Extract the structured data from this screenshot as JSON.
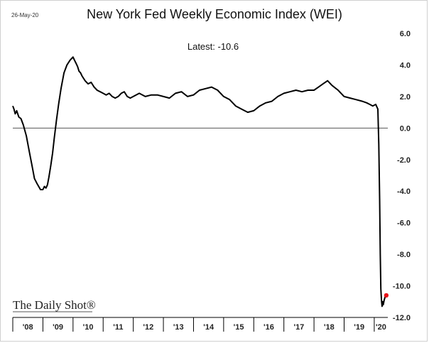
{
  "page": {
    "date_stamp": "26-May-20",
    "watermark": "The Daily Shot®"
  },
  "chart_data": {
    "type": "line",
    "title": "New York Fed Weekly Economic Index (WEI)",
    "annotation": "Latest:  -10.6",
    "latest_value": -10.6,
    "xlabel": "",
    "ylabel": "",
    "ylim": [
      -12,
      6
    ],
    "y_ticks": [
      6,
      4,
      2,
      0,
      -2,
      -4,
      -6,
      -8,
      -10,
      -12
    ],
    "y_tick_labels": [
      "6.0",
      "4.0",
      "2.0",
      "0.0",
      "-2.0",
      "-4.0",
      "-6.0",
      "-8.0",
      "-10.0",
      "-12.0"
    ],
    "x_categories": [
      "'08",
      "'09",
      "'10",
      "'11",
      "'12",
      "'13",
      "'14",
      "'15",
      "'16",
      "'17",
      "'18",
      "'19",
      "'20"
    ],
    "x_range": [
      2008,
      2020.45
    ],
    "y_axis_position": "right",
    "grid": false,
    "zero_line": true,
    "colors": {
      "line": "#000000",
      "latest_marker": "#e8141b",
      "zero_line": "#555555"
    },
    "series": [
      {
        "x": [
          2008.0,
          2008.04,
          2008.08,
          2008.13,
          2008.2,
          2008.27,
          2008.35,
          2008.45,
          2008.55,
          2008.65,
          2008.72,
          2008.8,
          2008.86,
          2008.92,
          2009.0,
          2009.05,
          2009.1,
          2009.15,
          2009.2,
          2009.26,
          2009.32,
          2009.38,
          2009.45,
          2009.52,
          2009.6,
          2009.7,
          2009.8,
          2009.9,
          2010.0,
          2010.05,
          2010.1,
          2010.15,
          2010.2,
          2010.25,
          2010.3,
          2010.4,
          2010.5,
          2010.6,
          2010.7,
          2010.8,
          2010.9,
          2011.0,
          2011.1,
          2011.2,
          2011.3,
          2011.4,
          2011.5,
          2011.6,
          2011.7,
          2011.8,
          2011.9,
          2012.0,
          2012.2,
          2012.4,
          2012.6,
          2012.8,
          2013.0,
          2013.2,
          2013.4,
          2013.6,
          2013.8,
          2014.0,
          2014.2,
          2014.4,
          2014.6,
          2014.8,
          2015.0,
          2015.2,
          2015.4,
          2015.6,
          2015.8,
          2016.0,
          2016.2,
          2016.4,
          2016.6,
          2016.8,
          2017.0,
          2017.2,
          2017.4,
          2017.6,
          2017.8,
          2018.0,
          2018.15,
          2018.3,
          2018.45,
          2018.6,
          2018.8,
          2019.0,
          2019.2,
          2019.4,
          2019.6,
          2019.75,
          2019.85,
          2019.95,
          2020.05,
          2020.12,
          2020.15,
          2020.18,
          2020.2,
          2020.22,
          2020.24,
          2020.26,
          2020.28,
          2020.3,
          2020.33,
          2020.36,
          2020.4
        ],
        "values": [
          1.4,
          1.2,
          0.9,
          1.1,
          0.7,
          0.6,
          0.2,
          -0.5,
          -1.5,
          -2.5,
          -3.2,
          -3.5,
          -3.7,
          -3.9,
          -3.9,
          -3.7,
          -3.8,
          -3.6,
          -3.1,
          -2.4,
          -1.6,
          -0.6,
          0.5,
          1.5,
          2.5,
          3.5,
          4.0,
          4.3,
          4.5,
          4.3,
          4.1,
          3.9,
          3.6,
          3.5,
          3.3,
          3.0,
          2.8,
          2.9,
          2.6,
          2.4,
          2.3,
          2.2,
          2.1,
          2.2,
          2.0,
          1.9,
          2.0,
          2.2,
          2.3,
          2.0,
          1.9,
          2.0,
          2.2,
          2.0,
          2.1,
          2.1,
          2.0,
          1.9,
          2.2,
          2.3,
          2.0,
          2.1,
          2.4,
          2.5,
          2.6,
          2.4,
          2.0,
          1.8,
          1.4,
          1.2,
          1.0,
          1.1,
          1.4,
          1.6,
          1.7,
          2.0,
          2.2,
          2.3,
          2.4,
          2.3,
          2.4,
          2.4,
          2.6,
          2.8,
          3.0,
          2.7,
          2.4,
          2.0,
          1.9,
          1.8,
          1.7,
          1.6,
          1.5,
          1.4,
          1.5,
          1.2,
          -1.0,
          -4.5,
          -8.0,
          -10.2,
          -10.9,
          -11.3,
          -11.0,
          -11.2,
          -10.9,
          -10.7,
          -10.6
        ]
      }
    ]
  }
}
